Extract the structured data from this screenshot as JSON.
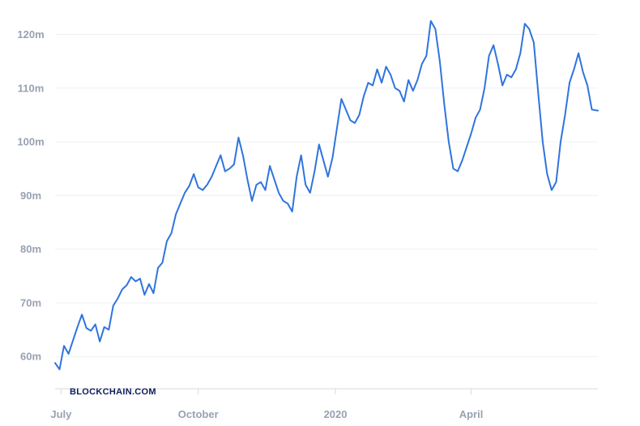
{
  "watermark": "BLOCKCHAIN.COM",
  "colors": {
    "line": "#2f74de",
    "grid": "#eef0f4",
    "axis": "#d5d9e0",
    "tick_text": "#98a1b2",
    "watermark": "#0c1e5b"
  },
  "chart_data": {
    "type": "line",
    "title": "",
    "xlabel": "",
    "ylabel": "",
    "y_unit": "m",
    "ylim": [
      54,
      124
    ],
    "y_ticks": [
      60,
      70,
      80,
      90,
      100,
      110,
      120
    ],
    "y_tick_labels": [
      "60m",
      "70m",
      "80m",
      "90m",
      "100m",
      "110m",
      "120m"
    ],
    "xlim": [
      "2019-06-27",
      "2020-06-25"
    ],
    "x_ticks": [
      "2019-07-01",
      "2019-10-01",
      "2020-01-01",
      "2020-04-01"
    ],
    "x_tick_labels": [
      "July",
      "October",
      "2020",
      "April"
    ],
    "grid": true,
    "legend": "none",
    "series": [
      {
        "x": [
          "2019-06-27",
          "2019-06-30",
          "2019-07-03",
          "2019-07-06",
          "2019-07-09",
          "2019-07-12",
          "2019-07-15",
          "2019-07-18",
          "2019-07-21",
          "2019-07-24",
          "2019-07-27",
          "2019-07-30",
          "2019-08-02",
          "2019-08-05",
          "2019-08-08",
          "2019-08-11",
          "2019-08-14",
          "2019-08-17",
          "2019-08-20",
          "2019-08-23",
          "2019-08-26",
          "2019-08-29",
          "2019-09-01",
          "2019-09-04",
          "2019-09-07",
          "2019-09-10",
          "2019-09-13",
          "2019-09-16",
          "2019-09-19",
          "2019-09-22",
          "2019-09-25",
          "2019-09-28",
          "2019-10-01",
          "2019-10-04",
          "2019-10-07",
          "2019-10-10",
          "2019-10-13",
          "2019-10-16",
          "2019-10-19",
          "2019-10-22",
          "2019-10-25",
          "2019-10-28",
          "2019-10-31",
          "2019-11-03",
          "2019-11-06",
          "2019-11-09",
          "2019-11-12",
          "2019-11-15",
          "2019-11-18",
          "2019-11-21",
          "2019-11-24",
          "2019-11-27",
          "2019-11-30",
          "2019-12-03",
          "2019-12-06",
          "2019-12-09",
          "2019-12-12",
          "2019-12-15",
          "2019-12-18",
          "2019-12-21",
          "2019-12-24",
          "2019-12-27",
          "2019-12-30",
          "2020-01-02",
          "2020-01-05",
          "2020-01-08",
          "2020-01-11",
          "2020-01-14",
          "2020-01-17",
          "2020-01-20",
          "2020-01-23",
          "2020-01-26",
          "2020-01-29",
          "2020-02-01",
          "2020-02-04",
          "2020-02-07",
          "2020-02-10",
          "2020-02-13",
          "2020-02-16",
          "2020-02-19",
          "2020-02-22",
          "2020-02-25",
          "2020-02-28",
          "2020-03-02",
          "2020-03-05",
          "2020-03-08",
          "2020-03-11",
          "2020-03-14",
          "2020-03-17",
          "2020-03-20",
          "2020-03-23",
          "2020-03-26",
          "2020-03-29",
          "2020-04-01",
          "2020-04-04",
          "2020-04-07",
          "2020-04-10",
          "2020-04-13",
          "2020-04-16",
          "2020-04-19",
          "2020-04-22",
          "2020-04-25",
          "2020-04-28",
          "2020-05-01",
          "2020-05-04",
          "2020-05-07",
          "2020-05-10",
          "2020-05-13",
          "2020-05-16",
          "2020-05-19",
          "2020-05-22",
          "2020-05-25",
          "2020-05-28",
          "2020-05-31",
          "2020-06-03",
          "2020-06-06",
          "2020-06-09",
          "2020-06-12",
          "2020-06-15",
          "2020-06-18",
          "2020-06-21",
          "2020-06-25"
        ],
        "values": [
          58.8,
          57.6,
          62.0,
          60.5,
          63.0,
          65.5,
          67.8,
          65.3,
          64.8,
          66.0,
          62.8,
          65.5,
          65.0,
          69.5,
          70.8,
          72.5,
          73.3,
          74.8,
          74.0,
          74.5,
          71.5,
          73.5,
          71.8,
          76.5,
          77.5,
          81.5,
          83.0,
          86.5,
          88.5,
          90.5,
          91.8,
          94.0,
          91.5,
          91.0,
          92.0,
          93.5,
          95.5,
          97.5,
          94.5,
          95.0,
          95.8,
          100.8,
          97.5,
          93.0,
          89.0,
          92.0,
          92.5,
          91.0,
          95.5,
          93.0,
          90.5,
          89.0,
          88.5,
          87.0,
          93.5,
          97.5,
          92.0,
          90.5,
          94.5,
          99.5,
          96.5,
          93.5,
          97.0,
          102.5,
          108.0,
          106.0,
          104.0,
          103.5,
          105.0,
          108.5,
          111.0,
          110.5,
          113.5,
          111.0,
          114.0,
          112.5,
          110.0,
          109.5,
          107.5,
          111.5,
          109.5,
          111.5,
          114.5,
          116.0,
          122.5,
          121.0,
          115.0,
          107.0,
          100.0,
          95.0,
          94.5,
          96.5,
          99.0,
          101.5,
          104.5,
          106.0,
          110.0,
          116.0,
          118.0,
          114.5,
          110.5,
          112.5,
          112.0,
          113.5,
          116.5,
          122.0,
          121.0,
          118.5,
          109.0,
          100.0,
          94.0,
          91.0,
          92.5,
          100.0,
          105.0,
          111.0,
          113.5,
          116.5,
          113.0,
          110.5,
          106.0,
          105.8
        ]
      }
    ]
  }
}
